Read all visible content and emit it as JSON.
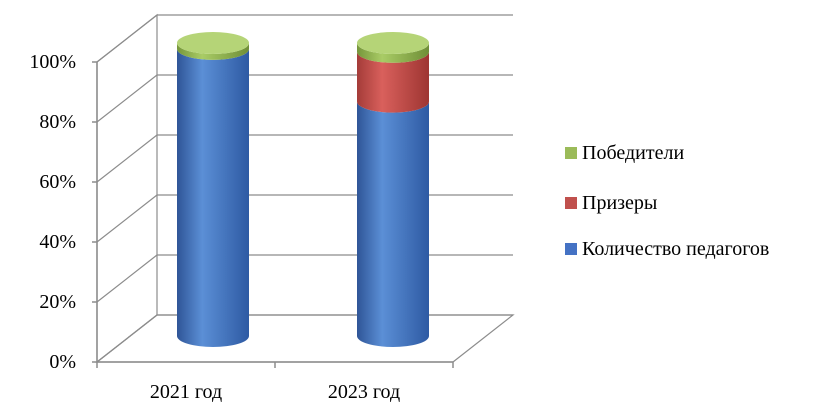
{
  "chart_data": {
    "type": "bar",
    "stacked": true,
    "percent": true,
    "three_d": "cylinder",
    "categories": [
      "2021 год",
      "2023 год"
    ],
    "series": [
      {
        "name": "Количество педагогов",
        "color": "#4472C4",
        "values": [
          98,
          80
        ]
      },
      {
        "name": "Призеры",
        "color": "#C0504D",
        "values": [
          0,
          17
        ]
      },
      {
        "name": "Победители",
        "color": "#9BBB59",
        "values": [
          2,
          3
        ]
      }
    ],
    "ylim": [
      0,
      100
    ],
    "y_ticks": [
      "0%",
      "20%",
      "40%",
      "60%",
      "80%",
      "100%"
    ],
    "grid": true,
    "legend_position": "right"
  }
}
